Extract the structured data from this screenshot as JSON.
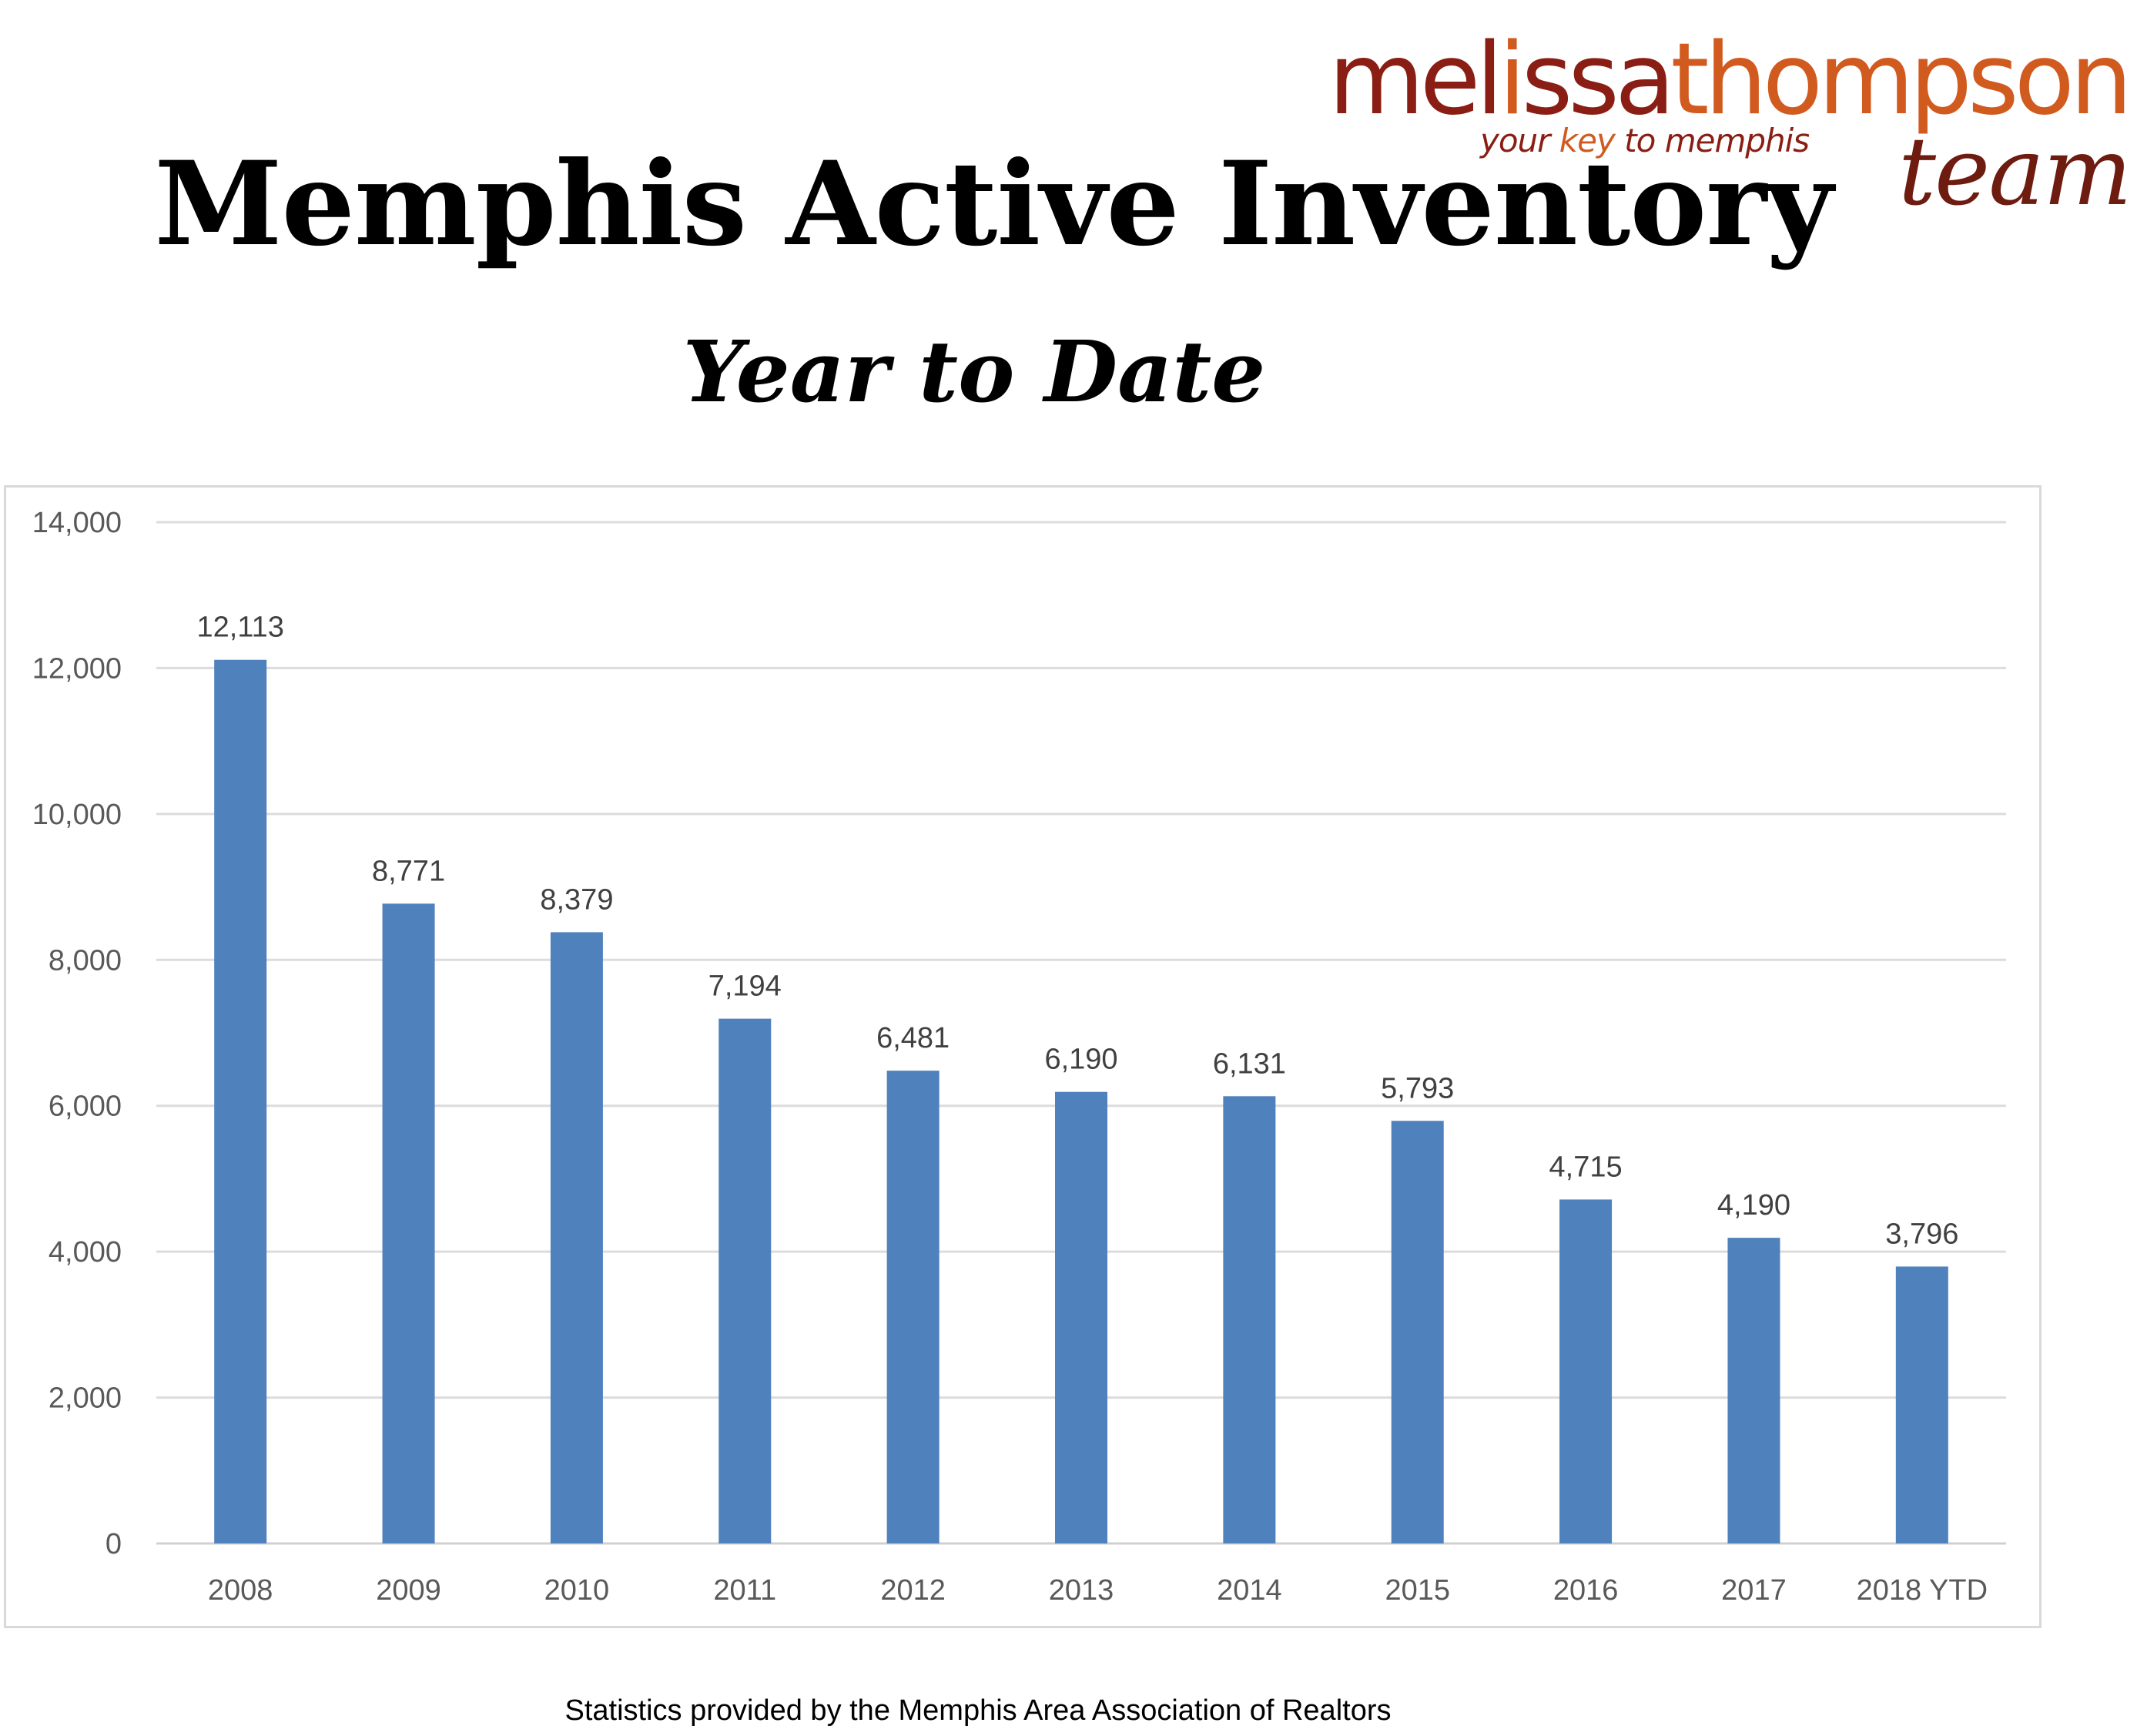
{
  "logo": {
    "part1": "mel",
    "key_letter": "i",
    "part2": "ssa",
    "part3": "thompson",
    "tagline_pre": "your ",
    "tagline_key": "key",
    "tagline_post": " to memphis",
    "team": "team",
    "colors": {
      "dark": "#8a1e14",
      "accent": "#d15a1f"
    }
  },
  "footer": {
    "text": "Statistics provided by the Memphis Area Association of Realtors"
  },
  "chart_data": {
    "type": "bar",
    "title": "Memphis Active Inventory",
    "subtitle": "Year to Date",
    "xlabel": "",
    "ylabel": "",
    "ylim": [
      0,
      14000
    ],
    "y_ticks": [
      0,
      2000,
      4000,
      6000,
      8000,
      10000,
      12000,
      14000
    ],
    "y_tick_labels": [
      "0",
      "2,000",
      "4,000",
      "6,000",
      "8,000",
      "10,000",
      "12,000",
      "14,000"
    ],
    "grid": true,
    "legend": "none",
    "bar_color": "#4f81bd",
    "categories": [
      "2008",
      "2009",
      "2010",
      "2011",
      "2012",
      "2013",
      "2014",
      "2015",
      "2016",
      "2017",
      "2018 YTD"
    ],
    "values": [
      12113,
      8771,
      8379,
      7194,
      6481,
      6190,
      6131,
      5793,
      4715,
      4190,
      3796
    ],
    "value_labels": [
      "12,113",
      "8,771",
      "8,379",
      "7,194",
      "6,481",
      "6,190",
      "6,131",
      "5,793",
      "4,715",
      "4,190",
      "3,796"
    ]
  }
}
